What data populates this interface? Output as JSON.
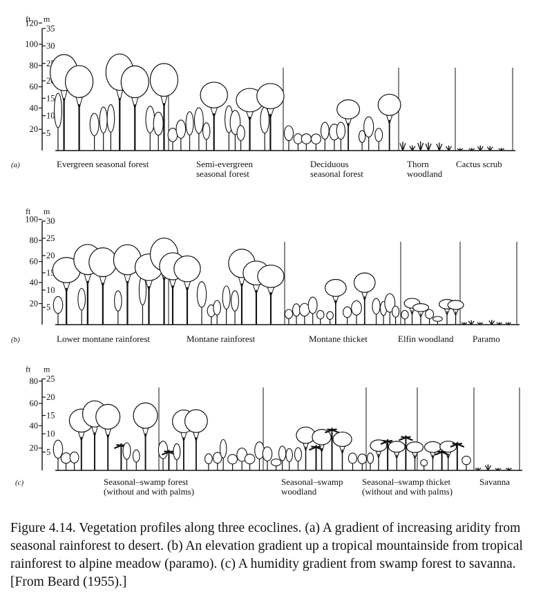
{
  "panels": [
    {
      "label": "(a)",
      "ft_ticks": [
        "120",
        "100",
        "80",
        "60",
        "40",
        "20"
      ],
      "m_ticks": [
        "35",
        "30",
        "25",
        "20",
        "15",
        "10",
        "5"
      ],
      "zones": [
        {
          "lines": [
            "Evergreen seasonal forest"
          ]
        },
        {
          "lines": [
            "Semi-evergreen",
            "seasonal forest"
          ]
        },
        {
          "lines": [
            "Deciduous",
            "seasonal forest"
          ]
        },
        {
          "lines": [
            "Thorn",
            "woodland"
          ]
        },
        {
          "lines": [
            "Cactus scrub"
          ]
        }
      ]
    },
    {
      "label": "(b)",
      "ft_ticks": [
        "100",
        "80",
        "60",
        "40",
        "20"
      ],
      "m_ticks": [
        "30",
        "25",
        "20",
        "15",
        "10",
        "5"
      ],
      "zones": [
        {
          "lines": [
            "Lower montane rainforest"
          ]
        },
        {
          "lines": [
            "Montane rainforest"
          ]
        },
        {
          "lines": [
            "Montane thicket"
          ]
        },
        {
          "lines": [
            "Elfin woodland"
          ]
        },
        {
          "lines": [
            "Paramo"
          ]
        }
      ]
    },
    {
      "label": "(c)",
      "ft_ticks": [
        "80",
        "60",
        "40",
        "20"
      ],
      "m_ticks": [
        "25",
        "20",
        "15",
        "10",
        "5"
      ],
      "zones": [
        {
          "lines": [
            "Seasonal–swamp forest",
            "(without and with palms)"
          ]
        },
        {
          "lines": [
            "Seasonal–swamp",
            "woodland"
          ]
        },
        {
          "lines": [
            "Seasonal–swamp thicket",
            "(without and with palms)"
          ]
        },
        {
          "lines": [
            "Savanna"
          ]
        }
      ]
    }
  ],
  "axis_units": {
    "ft": "ft",
    "m": "m"
  },
  "caption": "Figure 4.14. Vegetation profiles along three ecoclines. (a) A gradient of increasing aridity from seasonal rainforest to desert. (b) An elevation gradient up a tropical mountainside from tropical rainforest to alpine meadow (paramo). (c) A humidity gradient from swamp forest to savanna. [From Beard (1955).]"
}
